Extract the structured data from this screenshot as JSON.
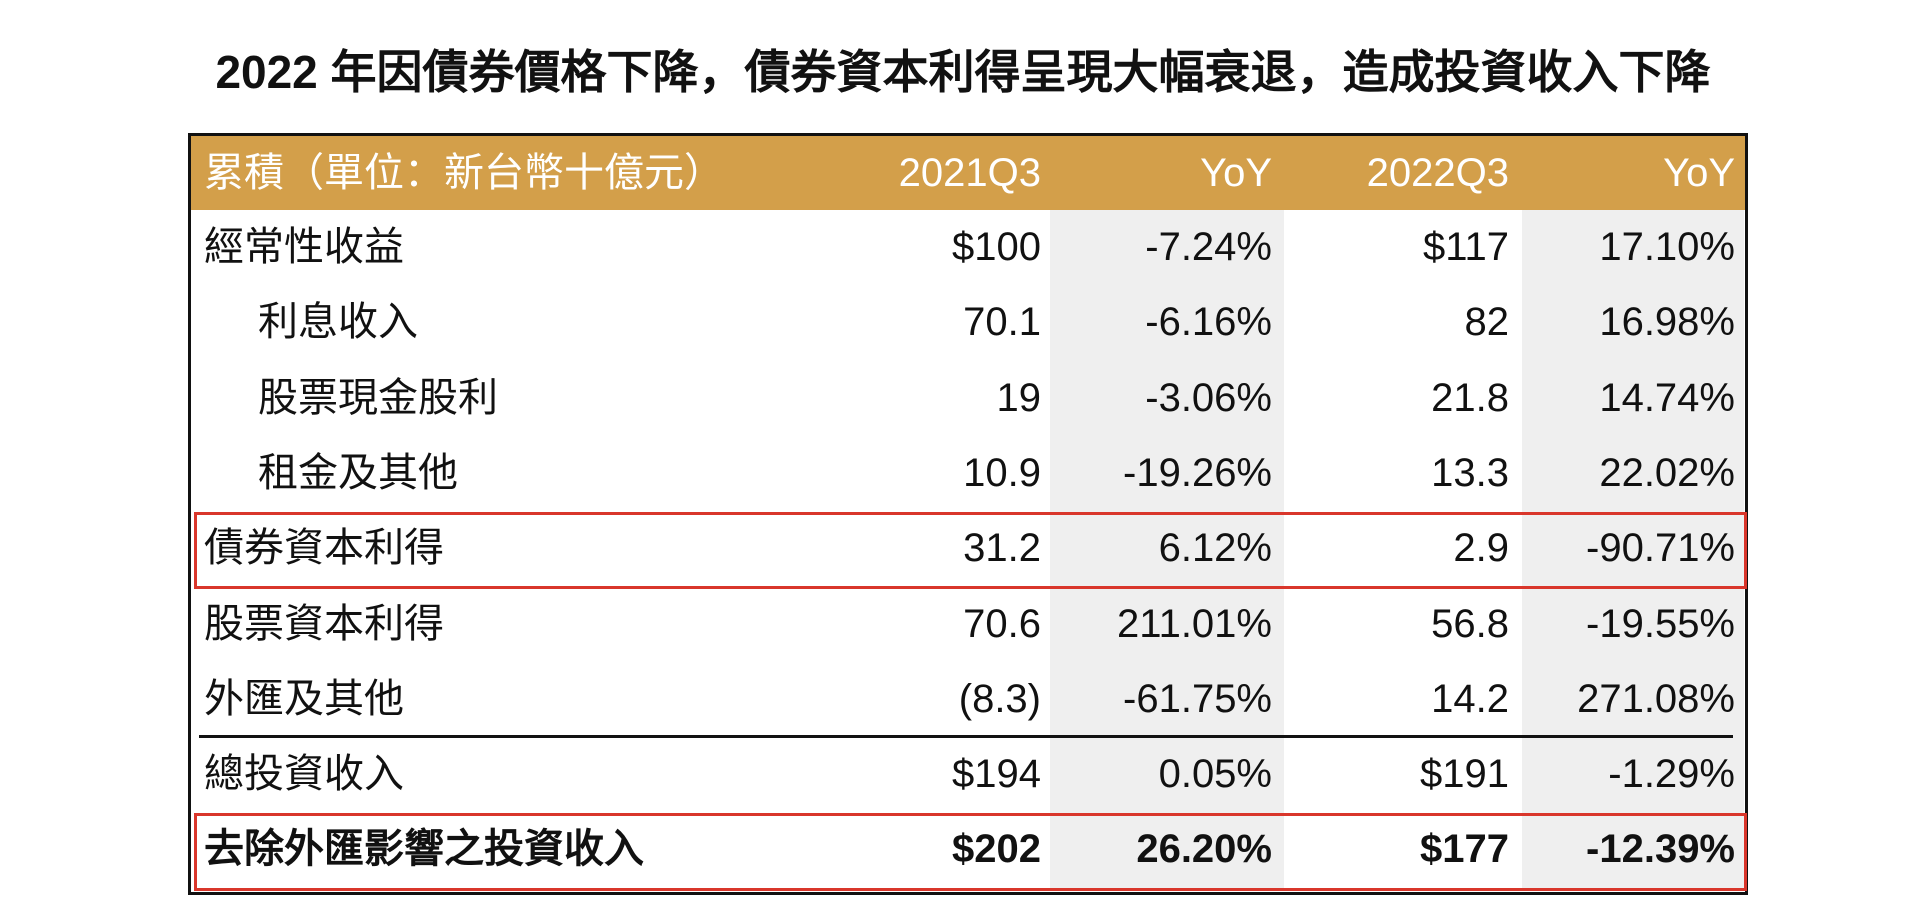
{
  "header": {
    "title": "2022 年因債券價格下降，債券資本利得呈現大幅衰退，造成投資收入下降"
  },
  "table": {
    "columns": [
      "累積（單位：新台幣十億元）",
      "2021Q3",
      "YoY",
      "2022Q3",
      "YoY"
    ],
    "rows": [
      [
        "經常性收益",
        "$100",
        "-7.24%",
        "$117",
        "17.10%"
      ],
      [
        "利息收入",
        "70.1",
        "-6.16%",
        "82",
        "16.98%"
      ],
      [
        "股票現金股利",
        "19",
        "-3.06%",
        "21.8",
        "14.74%"
      ],
      [
        "租金及其他",
        "10.9",
        "-19.26%",
        "13.3",
        "22.02%"
      ],
      [
        "債券資本利得",
        "31.2",
        "6.12%",
        "2.9",
        "-90.71%"
      ],
      [
        "股票資本利得",
        "70.6",
        "211.01%",
        "56.8",
        "-19.55%"
      ],
      [
        "外匯及其他",
        "(8.3)",
        "-61.75%",
        "14.2",
        "271.08%"
      ],
      [
        "總投資收入",
        "$194",
        "0.05%",
        "$191",
        "-1.29%"
      ],
      [
        "去除外匯影響之投資收入",
        "$202",
        "26.20%",
        "$177",
        "-12.39%"
      ]
    ]
  }
}
